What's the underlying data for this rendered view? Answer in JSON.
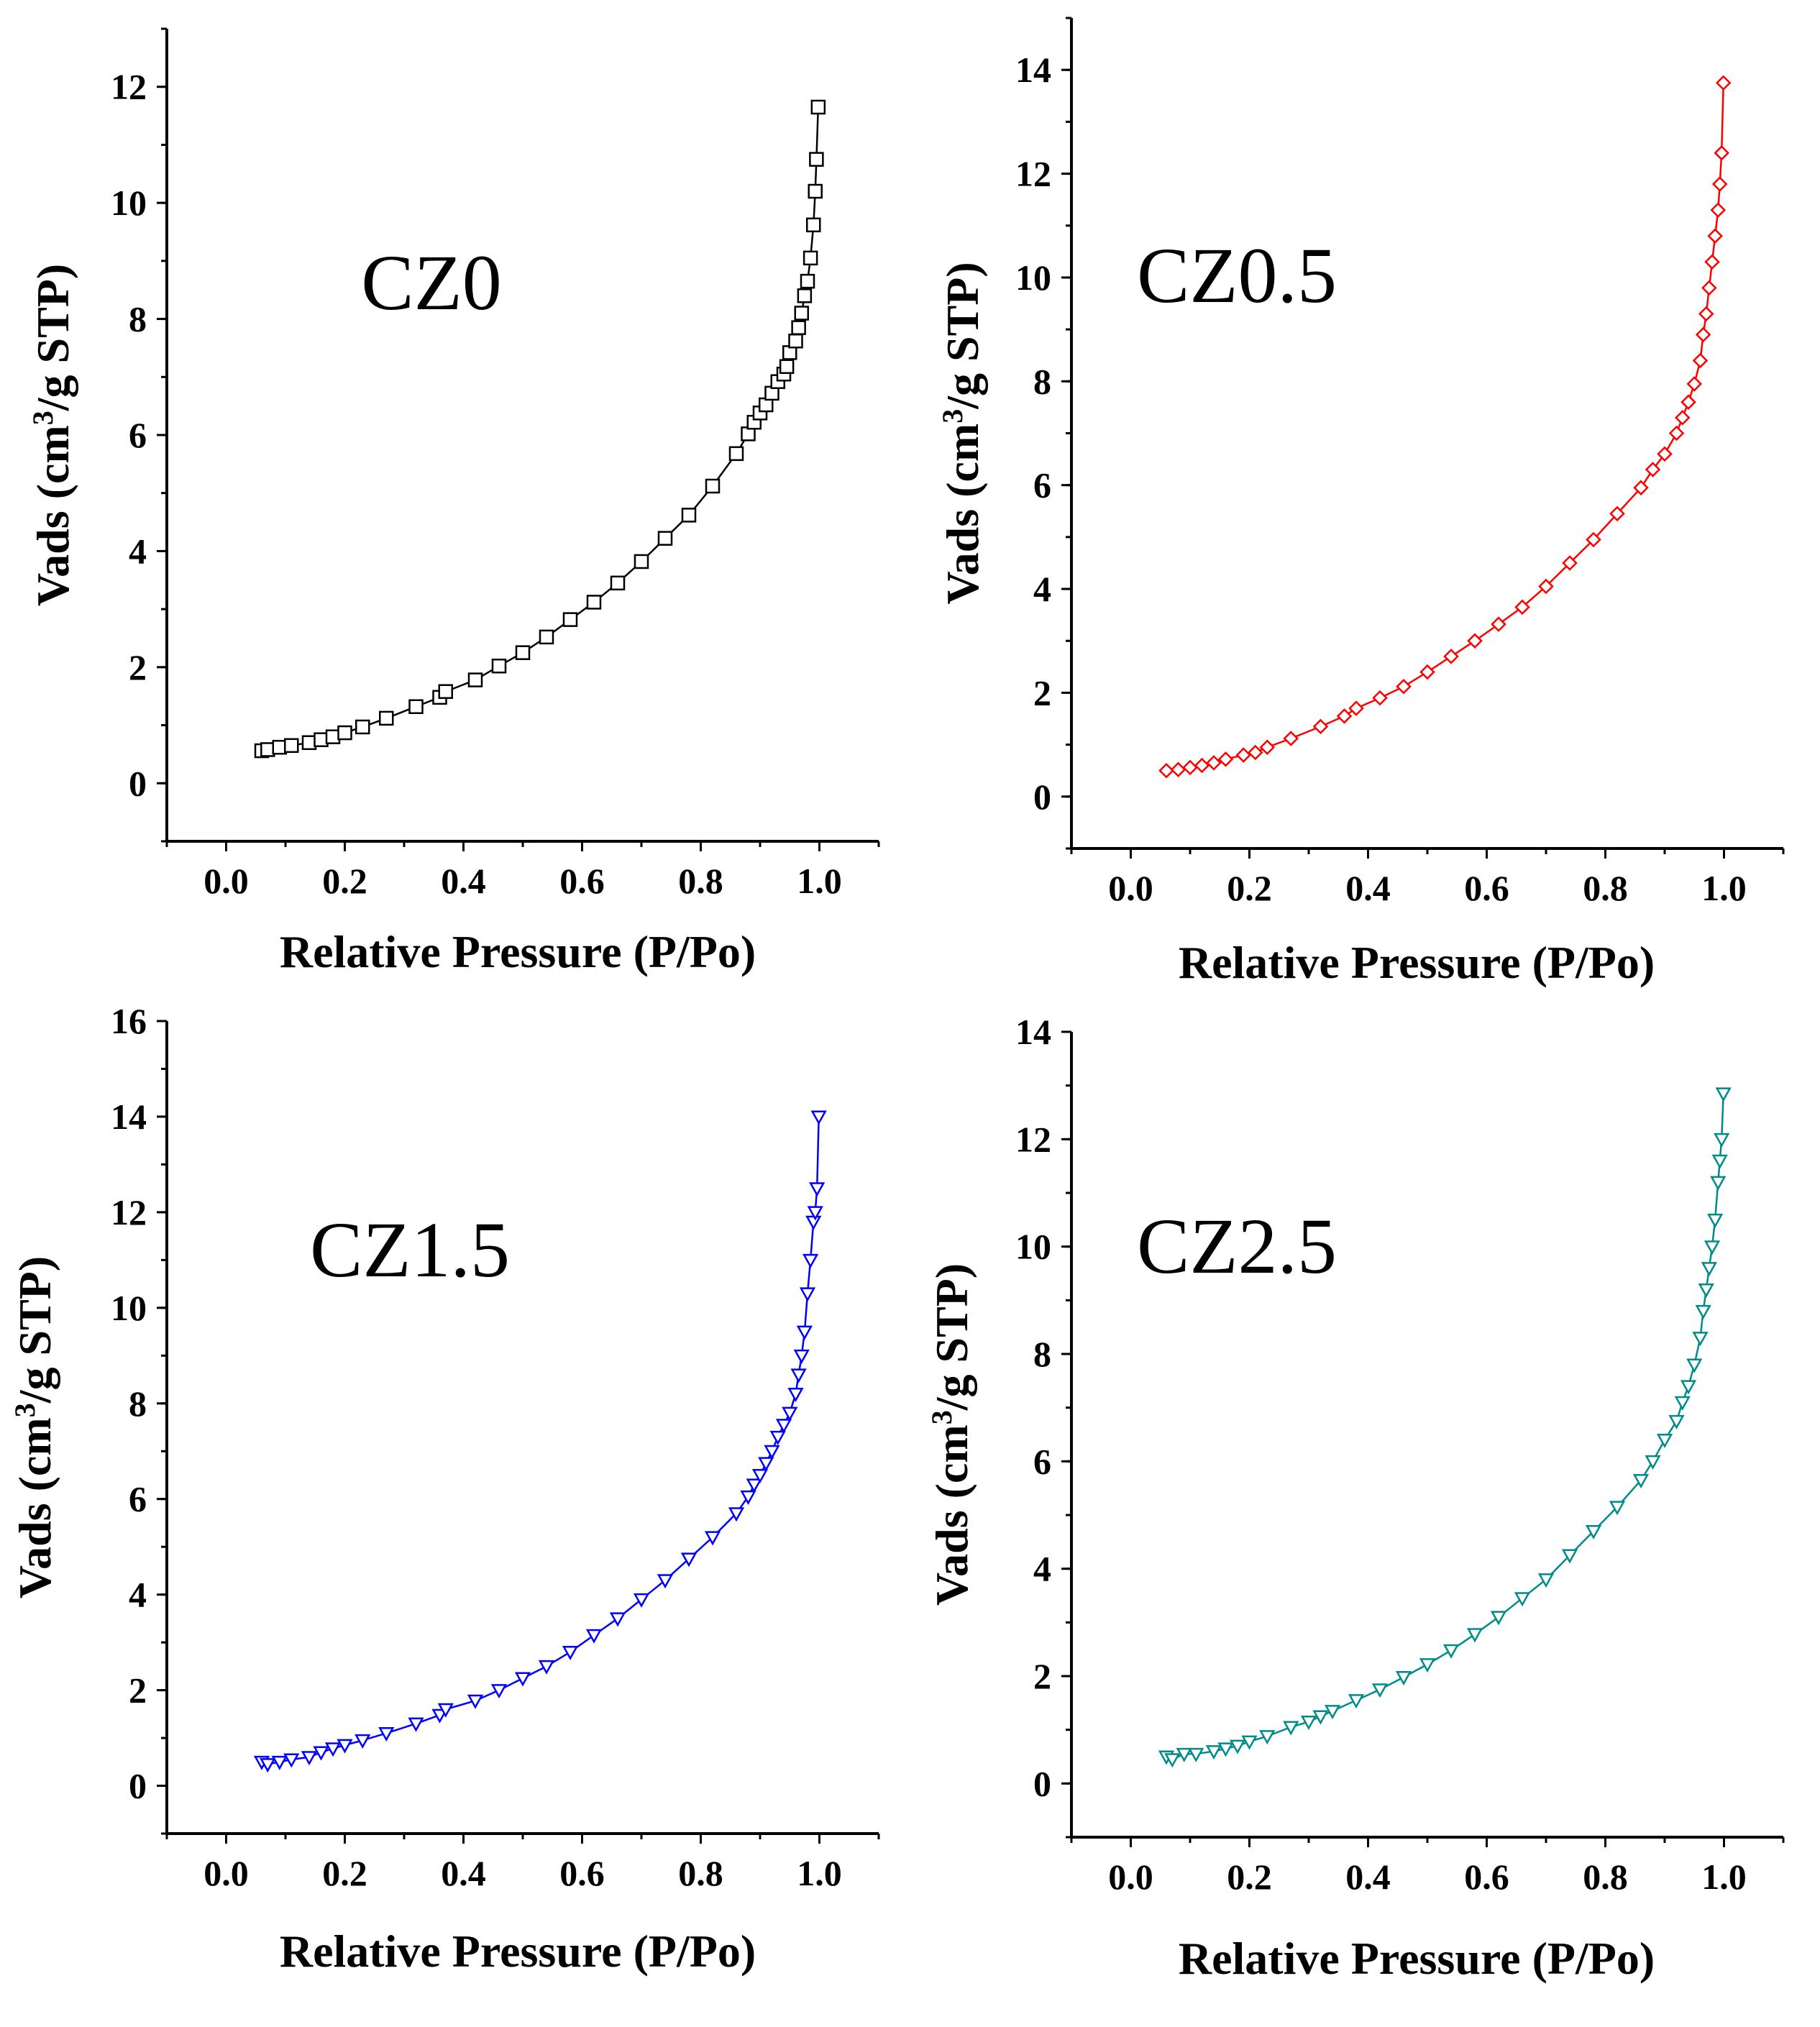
{
  "figure": {
    "xlabel": "Relative Pressure (P/Po)",
    "ylabel_prefix": "Vads (cm",
    "ylabel_sup": "3",
    "ylabel_suffix": "/g STP)"
  },
  "chart_data": [
    {
      "type": "scatter",
      "title": "CZ0",
      "color": "#000000",
      "marker": "square",
      "xlabel": "Relative Pressure (P/Po)",
      "ylabel": "Vads (cm3/g STP)",
      "xlim": [
        -0.1,
        1.1
      ],
      "ylim": [
        -1,
        13
      ],
      "xticks": [
        0.0,
        0.2,
        0.4,
        0.6,
        0.8,
        1.0
      ],
      "xtick_labels": [
        "0.0",
        "0.2",
        "0.4",
        "0.6",
        "0.8",
        "1.0"
      ],
      "yticks": [
        0,
        2,
        4,
        6,
        8,
        10,
        12
      ],
      "ytick_labels": [
        "0",
        "2",
        "4",
        "6",
        "8",
        "10",
        "12"
      ],
      "x": [
        0.06,
        0.07,
        0.09,
        0.11,
        0.14,
        0.16,
        0.18,
        0.2,
        0.23,
        0.27,
        0.32,
        0.36,
        0.37,
        0.42,
        0.46,
        0.5,
        0.54,
        0.58,
        0.62,
        0.66,
        0.7,
        0.74,
        0.78,
        0.82,
        0.86,
        0.88,
        0.89,
        0.9,
        0.91,
        0.92,
        0.93,
        0.94,
        0.945,
        0.95,
        0.96,
        0.965,
        0.97,
        0.975,
        0.98,
        0.985,
        0.99,
        0.993,
        0.995,
        0.998
      ],
      "y": [
        0.56,
        0.58,
        0.62,
        0.65,
        0.7,
        0.75,
        0.8,
        0.87,
        0.97,
        1.12,
        1.32,
        1.48,
        1.58,
        1.78,
        2.02,
        2.25,
        2.52,
        2.82,
        3.12,
        3.45,
        3.82,
        4.22,
        4.62,
        5.12,
        5.68,
        6.02,
        6.22,
        6.38,
        6.52,
        6.72,
        6.92,
        7.05,
        7.18,
        7.42,
        7.62,
        7.85,
        8.1,
        8.4,
        8.65,
        9.05,
        9.62,
        10.2,
        10.75,
        11.65
      ]
    },
    {
      "type": "scatter",
      "title": "CZ0.5",
      "color": "#ff0000",
      "marker": "diamond",
      "xlabel": "Relative Pressure (P/Po)",
      "ylabel": "Vads (cm3/g STP)",
      "xlim": [
        -0.1,
        1.1
      ],
      "ylim": [
        -1,
        15
      ],
      "xticks": [
        0.0,
        0.2,
        0.4,
        0.6,
        0.8,
        1.0
      ],
      "xtick_labels": [
        "0.0",
        "0.2",
        "0.4",
        "0.6",
        "0.8",
        "1.0"
      ],
      "yticks": [
        0,
        2,
        4,
        6,
        8,
        10,
        12,
        14
      ],
      "ytick_labels": [
        "0",
        "2",
        "4",
        "6",
        "8",
        "10",
        "12",
        "14"
      ],
      "x": [
        0.06,
        0.08,
        0.1,
        0.12,
        0.14,
        0.16,
        0.19,
        0.21,
        0.23,
        0.27,
        0.32,
        0.36,
        0.38,
        0.42,
        0.46,
        0.5,
        0.54,
        0.58,
        0.62,
        0.66,
        0.7,
        0.74,
        0.78,
        0.82,
        0.86,
        0.88,
        0.9,
        0.92,
        0.93,
        0.94,
        0.95,
        0.96,
        0.965,
        0.97,
        0.975,
        0.98,
        0.985,
        0.99,
        0.993,
        0.996,
        0.999
      ],
      "y": [
        0.5,
        0.52,
        0.56,
        0.6,
        0.65,
        0.72,
        0.8,
        0.85,
        0.95,
        1.12,
        1.35,
        1.55,
        1.7,
        1.9,
        2.12,
        2.4,
        2.7,
        3.0,
        3.32,
        3.65,
        4.05,
        4.5,
        4.95,
        5.45,
        5.95,
        6.3,
        6.6,
        7.0,
        7.3,
        7.6,
        7.95,
        8.4,
        8.9,
        9.3,
        9.8,
        10.3,
        10.8,
        11.3,
        11.8,
        12.4,
        13.75
      ]
    },
    {
      "type": "scatter",
      "title": "CZ1.5",
      "color": "#0000ff",
      "marker": "triangle-down",
      "xlabel": "Relative Pressure (P/Po)",
      "ylabel": "Vads (cm3/g STP)",
      "xlim": [
        -0.1,
        1.1
      ],
      "ylim": [
        -1,
        16
      ],
      "xticks": [
        0.0,
        0.2,
        0.4,
        0.6,
        0.8,
        1.0
      ],
      "xtick_labels": [
        "0.0",
        "0.2",
        "0.4",
        "0.6",
        "0.8",
        "1.0"
      ],
      "yticks": [
        0,
        2,
        4,
        6,
        8,
        10,
        12,
        14,
        16
      ],
      "ytick_labels": [
        "0",
        "2",
        "4",
        "6",
        "8",
        "10",
        "12",
        "14",
        "16"
      ],
      "x": [
        0.06,
        0.07,
        0.09,
        0.11,
        0.14,
        0.16,
        0.18,
        0.2,
        0.23,
        0.27,
        0.32,
        0.36,
        0.37,
        0.42,
        0.46,
        0.5,
        0.54,
        0.58,
        0.62,
        0.66,
        0.7,
        0.74,
        0.78,
        0.82,
        0.86,
        0.88,
        0.89,
        0.9,
        0.91,
        0.92,
        0.93,
        0.94,
        0.95,
        0.96,
        0.965,
        0.97,
        0.975,
        0.98,
        0.985,
        0.99,
        0.993,
        0.996,
        0.999
      ],
      "y": [
        0.5,
        0.45,
        0.5,
        0.55,
        0.6,
        0.7,
        0.78,
        0.85,
        0.95,
        1.1,
        1.3,
        1.48,
        1.6,
        1.78,
        2.0,
        2.25,
        2.5,
        2.8,
        3.15,
        3.5,
        3.9,
        4.3,
        4.75,
        5.2,
        5.7,
        6.05,
        6.3,
        6.5,
        6.75,
        7.0,
        7.3,
        7.55,
        7.8,
        8.2,
        8.6,
        9.0,
        9.5,
        10.3,
        11.0,
        11.8,
        12.0,
        12.5,
        14.0
      ]
    },
    {
      "type": "scatter",
      "title": "CZ2.5",
      "color": "#008b8b",
      "marker": "triangle-down",
      "xlabel": "Relative Pressure (P/Po)",
      "ylabel": "Vads (cm3/g STP)",
      "xlim": [
        -0.1,
        1.1
      ],
      "ylim": [
        -1,
        14
      ],
      "xticks": [
        0.0,
        0.2,
        0.4,
        0.6,
        0.8,
        1.0
      ],
      "xtick_labels": [
        "0.0",
        "0.2",
        "0.4",
        "0.6",
        "0.8",
        "1.0"
      ],
      "yticks": [
        0,
        2,
        4,
        6,
        8,
        10,
        12,
        14
      ],
      "ytick_labels": [
        "0",
        "2",
        "4",
        "6",
        "8",
        "10",
        "12",
        "14"
      ],
      "x": [
        0.06,
        0.07,
        0.09,
        0.11,
        0.14,
        0.16,
        0.18,
        0.2,
        0.23,
        0.27,
        0.3,
        0.32,
        0.34,
        0.38,
        0.42,
        0.46,
        0.5,
        0.54,
        0.58,
        0.62,
        0.66,
        0.7,
        0.74,
        0.78,
        0.82,
        0.86,
        0.88,
        0.9,
        0.92,
        0.93,
        0.94,
        0.95,
        0.96,
        0.965,
        0.97,
        0.975,
        0.98,
        0.985,
        0.99,
        0.993,
        0.996,
        0.999
      ],
      "y": [
        0.5,
        0.45,
        0.55,
        0.55,
        0.6,
        0.65,
        0.7,
        0.78,
        0.88,
        1.05,
        1.15,
        1.25,
        1.35,
        1.55,
        1.75,
        1.98,
        2.22,
        2.48,
        2.78,
        3.1,
        3.45,
        3.8,
        4.25,
        4.7,
        5.15,
        5.65,
        6.0,
        6.4,
        6.75,
        7.1,
        7.4,
        7.8,
        8.3,
        8.8,
        9.2,
        9.6,
        10.0,
        10.5,
        11.2,
        11.6,
        12.0,
        12.85
      ]
    }
  ]
}
